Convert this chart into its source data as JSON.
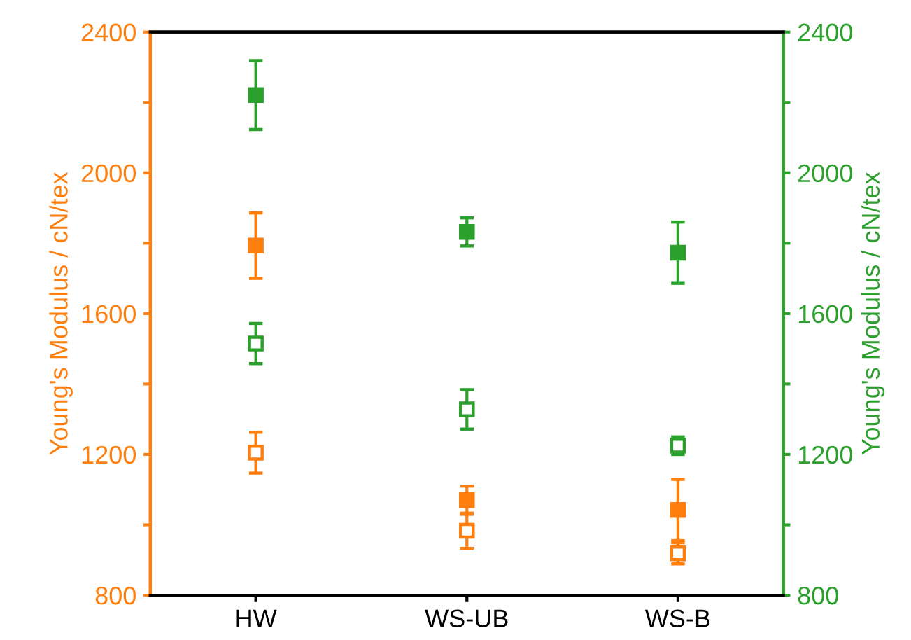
{
  "chart_data": {
    "type": "scatter",
    "ylabel": "Young's Modulus / cN/tex",
    "y2label": "Young's Modulus / cN/tex",
    "categories": [
      "HW",
      "WS-UB",
      "WS-B"
    ],
    "ylim": [
      800,
      2400
    ],
    "y2lim": [
      800,
      2400
    ],
    "yticks": [
      800,
      {
        "value": 1000,
        "label": null
      },
      1200,
      {
        "value": 1400,
        "label": null
      },
      1600,
      {
        "value": 1800,
        "label": null
      },
      2000,
      {
        "value": 2200,
        "label": null
      },
      2400
    ],
    "y2ticks": [
      800,
      {
        "value": 1000,
        "label": null
      },
      1200,
      {
        "value": 1400,
        "label": null
      },
      1600,
      {
        "value": 1800,
        "label": null
      },
      2000,
      {
        "value": 2200,
        "label": null
      },
      2400
    ],
    "marker": "square",
    "grid": false,
    "legend": false,
    "series": [
      {
        "color": "#ff7f0e",
        "values": [
          1793,
          1070,
          1042
        ],
        "errors": [
          93,
          40,
          87
        ]
      },
      {
        "color": "#ff7f0e",
        "values": [
          1205,
          983,
          919
        ],
        "errors": [
          58,
          50,
          30
        ]
      },
      {
        "color": "#2ca02c",
        "axis": "y2",
        "values": [
          2221,
          1832,
          1773
        ],
        "errors": [
          98,
          40,
          87
        ]
      },
      {
        "color": "#2ca02c",
        "axis": "y2",
        "values": [
          1515,
          1328,
          1225
        ],
        "errors": [
          57,
          56,
          25
        ]
      }
    ]
  }
}
